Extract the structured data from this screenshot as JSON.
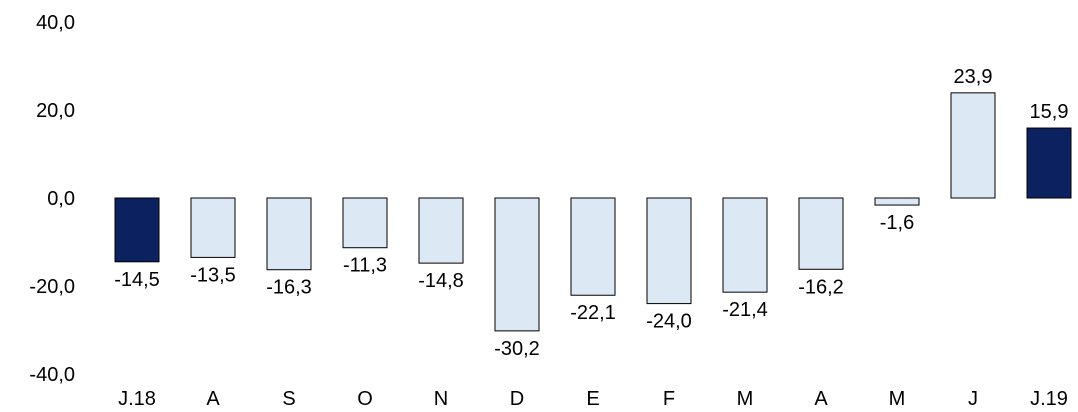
{
  "chart_data": {
    "type": "bar",
    "title": "",
    "xlabel": "",
    "ylabel": "",
    "ylim": [
      -40,
      40
    ],
    "yticks": [
      40,
      20,
      0,
      -20,
      -40
    ],
    "ytick_labels": [
      "40,0",
      "20,0",
      "0,0",
      "-20,0",
      "-40,0"
    ],
    "categories": [
      "J.18",
      "A",
      "S",
      "O",
      "N",
      "D",
      "E",
      "F",
      "M",
      "A",
      "M",
      "J",
      "J.19"
    ],
    "values": [
      -14.5,
      -13.5,
      -16.3,
      -11.3,
      -14.8,
      -30.2,
      -22.1,
      -24.0,
      -21.4,
      -16.2,
      -1.6,
      23.9,
      15.9
    ],
    "data_labels": [
      "-14,5",
      "-13,5",
      "-16,3",
      "-11,3",
      "-14,8",
      "-30,2",
      "-22,1",
      "-24,0",
      "-21,4",
      "-16,2",
      "-1,6",
      "23,9",
      "15,9"
    ],
    "highlighted": [
      true,
      false,
      false,
      false,
      false,
      false,
      false,
      false,
      false,
      false,
      false,
      false,
      true
    ],
    "colors": {
      "highlight": "#0b2160",
      "normal": "#dde8f5",
      "border": "#000000"
    },
    "grid": false,
    "legend": "none"
  }
}
